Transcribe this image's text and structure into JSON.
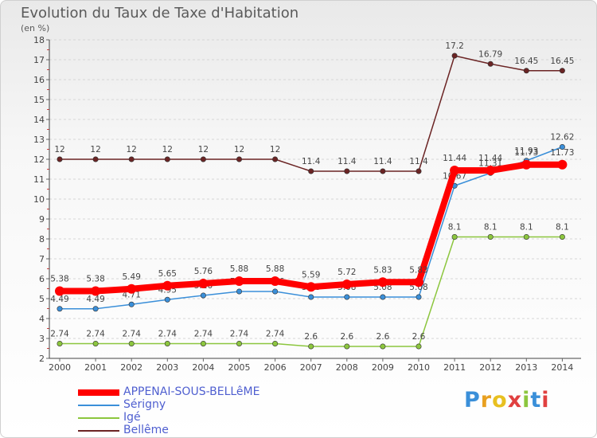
{
  "title": "Evolution du Taux de Taxe d'Habitation",
  "subtitle": "(en %)",
  "logo_text": "Proxiti",
  "chart_data": {
    "type": "line",
    "title": "Evolution du Taux de Taxe d'Habitation",
    "ylabel": "(en %)",
    "xlabel": "",
    "x": [
      "2000",
      "2001",
      "2002",
      "2003",
      "2004",
      "2005",
      "2006",
      "2007",
      "2008",
      "2009",
      "2010",
      "2011",
      "2012",
      "2013",
      "2014"
    ],
    "ylim": [
      2,
      18
    ],
    "yticks": [
      "2",
      "3",
      "4",
      "5",
      "6",
      "7",
      "8",
      "9",
      "10",
      "11",
      "12",
      "13",
      "14",
      "15",
      "16",
      "17",
      "18"
    ],
    "grid": "horizontal dashed",
    "legend_position": "bottom-left",
    "series": [
      {
        "name": "Bellême",
        "color": "#6b2424",
        "values": [
          12,
          12,
          12,
          12,
          12,
          12,
          12,
          11.4,
          11.4,
          11.4,
          11.4,
          17.2,
          16.79,
          16.45,
          16.45
        ],
        "labels": [
          "12",
          "12",
          "12",
          "12",
          "12",
          "12",
          "12",
          "11.4",
          "11.4",
          "11.4",
          "11.4",
          "17.2",
          "16.79",
          "16.45",
          "16.45"
        ]
      },
      {
        "name": "Sérigny",
        "color": "#3a8fd9",
        "values": [
          4.49,
          4.49,
          4.71,
          4.95,
          5.16,
          5.36,
          5.36,
          5.08,
          5.08,
          5.08,
          5.08,
          10.67,
          11.31,
          11.93,
          12.62
        ],
        "labels": [
          "4.49",
          "4.49",
          "4.71",
          "4.95",
          "5.16",
          "5.36",
          "5.36",
          "5.08",
          "5.08",
          "5.08",
          "5.08",
          "10.67",
          "11.31",
          "11.93",
          "12.62"
        ]
      },
      {
        "name": "Igé",
        "color": "#8cc63e",
        "values": [
          2.74,
          2.74,
          2.74,
          2.74,
          2.74,
          2.74,
          2.74,
          2.6,
          2.6,
          2.6,
          2.6,
          8.1,
          8.1,
          8.1,
          8.1
        ],
        "labels": [
          "2.74",
          "2.74",
          "2.74",
          "2.74",
          "2.74",
          "2.74",
          "2.74",
          "2.6",
          "2.6",
          "2.6",
          "2.6",
          "8.1",
          "8.1",
          "8.1",
          "8.1"
        ]
      },
      {
        "name": "APPENAI-SOUS-BELLêME",
        "color": "#ff0000",
        "values": [
          5.38,
          5.38,
          5.49,
          5.65,
          5.76,
          5.88,
          5.88,
          5.59,
          5.72,
          5.83,
          5.83,
          11.44,
          11.44,
          11.73,
          11.73
        ],
        "labels": [
          "5.38",
          "5.38",
          "5.49",
          "5.65",
          "5.76",
          "5.88",
          "5.88",
          "5.59",
          "5.72",
          "5.83",
          "5.83",
          "11.44",
          "11.44",
          "11.73",
          "11.73"
        ]
      }
    ]
  },
  "legend": [
    {
      "label": "APPENAI-SOUS-BELLêME",
      "color": "#ff0000"
    },
    {
      "label": "Sérigny",
      "color": "#3a8fd9"
    },
    {
      "label": "Igé",
      "color": "#8cc63e"
    },
    {
      "label": "Bellême",
      "color": "#6b2424"
    }
  ]
}
